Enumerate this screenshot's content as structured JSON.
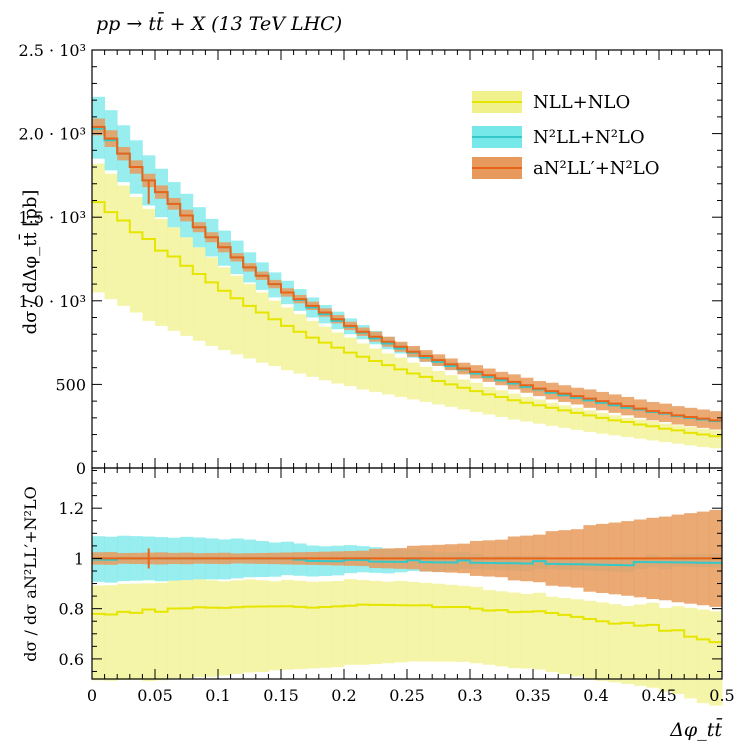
{
  "chart_data": [
    {
      "type": "line",
      "panel": "main",
      "title": "pp → tt̄ + X (13 TeV LHC)",
      "ylabel": "dσ / dΔφ_tt̄ [pb]",
      "xlabel": "",
      "xlim": [
        0,
        0.5
      ],
      "ylim": [
        0,
        2500
      ],
      "y_ticks": [
        0,
        500,
        1000,
        1500,
        2000,
        2500
      ],
      "y_tick_labels": [
        "0",
        "500",
        "1.0 · 10³",
        "1.5 · 10³",
        "2.0 · 10³",
        "2.5 · 10³"
      ],
      "legend_position": "top-right",
      "bin_width": 0.01,
      "x": [
        0.0,
        0.01,
        0.02,
        0.03,
        0.04,
        0.05,
        0.06,
        0.07,
        0.08,
        0.09,
        0.1,
        0.11,
        0.12,
        0.13,
        0.14,
        0.15,
        0.16,
        0.17,
        0.18,
        0.19,
        0.2,
        0.21,
        0.22,
        0.23,
        0.24,
        0.25,
        0.26,
        0.27,
        0.28,
        0.29,
        0.3,
        0.31,
        0.32,
        0.33,
        0.34,
        0.35,
        0.36,
        0.37,
        0.38,
        0.39,
        0.4,
        0.41,
        0.42,
        0.43,
        0.44,
        0.45,
        0.46,
        0.47,
        0.48,
        0.49
      ],
      "series": [
        {
          "name": "NLL+NLO",
          "color": "#e5e500",
          "band_color": "#f1f18c",
          "central": [
            1590,
            1530,
            1480,
            1410,
            1370,
            1300,
            1265,
            1210,
            1160,
            1110,
            1060,
            1015,
            970,
            930,
            890,
            850,
            815,
            780,
            750,
            720,
            690,
            665,
            640,
            615,
            590,
            565,
            545,
            520,
            500,
            480,
            460,
            440,
            425,
            405,
            390,
            375,
            360,
            345,
            330,
            315,
            300,
            285,
            275,
            260,
            250,
            235,
            225,
            210,
            200,
            190
          ],
          "lower": [
            1050,
            1010,
            970,
            930,
            880,
            850,
            820,
            790,
            760,
            730,
            705,
            680,
            655,
            630,
            610,
            585,
            565,
            545,
            525,
            505,
            490,
            470,
            455,
            440,
            425,
            410,
            395,
            380,
            365,
            350,
            335,
            320,
            305,
            290,
            278,
            265,
            252,
            240,
            228,
            215,
            205,
            195,
            185,
            175,
            165,
            155,
            145,
            135,
            125,
            118
          ],
          "upper": [
            1820,
            1760,
            1690,
            1620,
            1550,
            1490,
            1440,
            1380,
            1320,
            1260,
            1200,
            1150,
            1100,
            1050,
            1000,
            960,
            920,
            880,
            845,
            810,
            780,
            745,
            715,
            685,
            660,
            630,
            605,
            580,
            555,
            530,
            510,
            485,
            465,
            445,
            425,
            410,
            390,
            375,
            360,
            345,
            330,
            315,
            300,
            290,
            280,
            265,
            255,
            245,
            235,
            225
          ]
        },
        {
          "name": "N²LL+N²LO",
          "color": "#35c8c8",
          "band_color": "#76e8ea",
          "central": [
            2030,
            1960,
            1880,
            1800,
            1720,
            1650,
            1580,
            1510,
            1440,
            1380,
            1320,
            1260,
            1200,
            1150,
            1100,
            1050,
            1005,
            960,
            920,
            880,
            845,
            810,
            775,
            745,
            715,
            690,
            660,
            635,
            610,
            590,
            565,
            545,
            525,
            505,
            485,
            470,
            450,
            435,
            420,
            405,
            390,
            375,
            360,
            350,
            335,
            325,
            310,
            300,
            290,
            280
          ],
          "lower": [
            1850,
            1780,
            1710,
            1640,
            1570,
            1500,
            1440,
            1380,
            1320,
            1265,
            1210,
            1160,
            1110,
            1065,
            1020,
            980,
            940,
            900,
            865,
            830,
            800,
            770,
            740,
            710,
            685,
            660,
            635,
            610,
            590,
            570,
            550,
            530,
            510,
            490,
            470,
            455,
            440,
            425,
            410,
            395,
            380,
            365,
            350,
            340,
            328,
            316,
            305,
            295,
            285,
            275
          ],
          "upper": [
            2220,
            2140,
            2050,
            1960,
            1870,
            1790,
            1710,
            1640,
            1560,
            1490,
            1420,
            1360,
            1290,
            1230,
            1170,
            1120,
            1070,
            1020,
            975,
            935,
            895,
            855,
            820,
            785,
            750,
            720,
            690,
            660,
            635,
            610,
            585,
            560,
            540,
            520,
            500,
            480,
            460,
            445,
            430,
            415,
            400,
            385,
            370,
            355,
            345,
            332,
            320,
            310,
            300,
            290
          ]
        },
        {
          "name": "aN²LL′+N²LO",
          "color": "#e8641a",
          "band_color": "#e89a5c",
          "central": [
            2040,
            1970,
            1880,
            1800,
            1720,
            1650,
            1580,
            1510,
            1440,
            1380,
            1320,
            1260,
            1200,
            1150,
            1100,
            1050,
            1010,
            970,
            930,
            890,
            850,
            815,
            785,
            755,
            725,
            695,
            670,
            645,
            620,
            595,
            575,
            555,
            535,
            515,
            495,
            475,
            460,
            445,
            430,
            415,
            400,
            385,
            370,
            355,
            340,
            330,
            315,
            305,
            295,
            285
          ],
          "lower": [
            1990,
            1920,
            1840,
            1760,
            1680,
            1610,
            1545,
            1475,
            1410,
            1350,
            1290,
            1235,
            1175,
            1125,
            1075,
            1025,
            985,
            945,
            905,
            865,
            825,
            790,
            755,
            725,
            695,
            665,
            635,
            610,
            585,
            560,
            535,
            515,
            495,
            470,
            450,
            430,
            410,
            395,
            380,
            360,
            345,
            330,
            315,
            300,
            285,
            275,
            260,
            250,
            240,
            230
          ],
          "upper": [
            2090,
            2020,
            1920,
            1840,
            1760,
            1690,
            1615,
            1545,
            1470,
            1410,
            1350,
            1285,
            1225,
            1175,
            1125,
            1075,
            1035,
            995,
            955,
            915,
            875,
            840,
            815,
            785,
            755,
            730,
            705,
            680,
            655,
            630,
            615,
            595,
            575,
            560,
            540,
            520,
            510,
            495,
            480,
            470,
            455,
            440,
            425,
            410,
            395,
            385,
            370,
            360,
            350,
            340
          ]
        }
      ],
      "marker": {
        "x": 0.045,
        "y": 1650,
        "lower": 1580,
        "upper": 1720
      }
    },
    {
      "type": "line",
      "panel": "ratio",
      "ylabel": "dσ / dσ aN²LL′+N²LO",
      "xlabel": "Δφ_tt̄",
      "xlim": [
        0,
        0.5
      ],
      "ylim": [
        0.52,
        1.36
      ],
      "y_ticks": [
        0.6,
        0.8,
        1.0,
        1.2
      ],
      "y_tick_labels": [
        "0.6",
        "0.8",
        "1",
        "1.2"
      ],
      "x_ticks": [
        0,
        0.05,
        0.1,
        0.15,
        0.2,
        0.25,
        0.3,
        0.35,
        0.4,
        0.45,
        0.5
      ],
      "x_tick_labels": [
        "0",
        "0.05",
        "0.1",
        "0.15",
        "0.2",
        "0.25",
        "0.3",
        "0.35",
        "0.4",
        "0.45",
        "0.5"
      ],
      "marker": {
        "x": 0.045,
        "y": 1.0,
        "lower": 0.96,
        "upper": 1.04
      }
    }
  ]
}
